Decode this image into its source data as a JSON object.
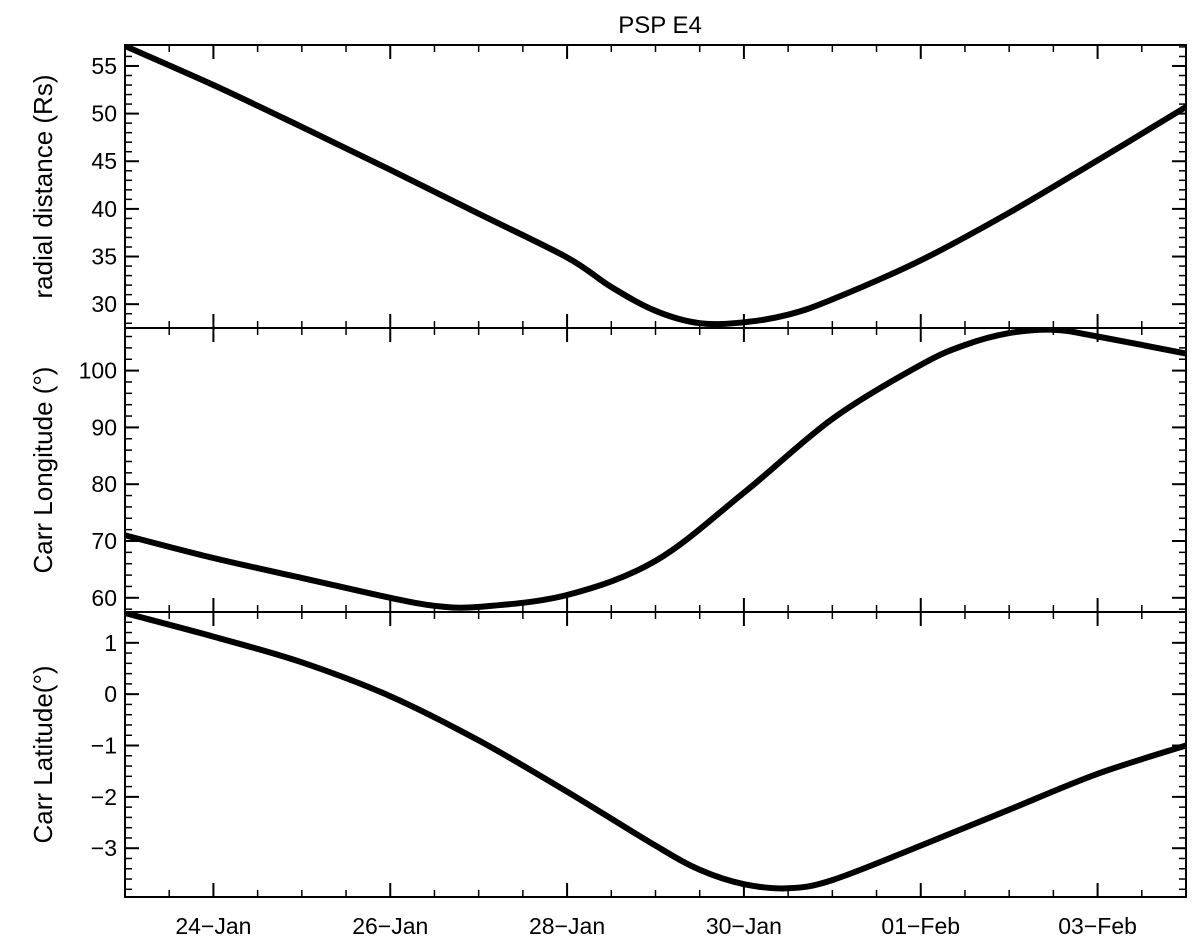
{
  "chart_data": {
    "type": "line",
    "title": "PSP E4",
    "x_unit": "days",
    "x_ticks": [
      {
        "value": "2020-01-24",
        "label": "24−Jan"
      },
      {
        "value": "2020-01-26",
        "label": "26−Jan"
      },
      {
        "value": "2020-01-28",
        "label": "28−Jan"
      },
      {
        "value": "2020-01-30",
        "label": "30−Jan"
      },
      {
        "value": "2020-02-01",
        "label": "01−Feb"
      },
      {
        "value": "2020-02-03",
        "label": "03−Feb"
      }
    ],
    "xlim": [
      "2020-01-23",
      "2020-02-04"
    ],
    "line_color": "#000000",
    "panels": [
      {
        "ylabel": "radial distance (Rs)",
        "ylim": [
          27.5,
          57.2
        ],
        "yticks": [
          30,
          35,
          40,
          45,
          50,
          55
        ],
        "series": {
          "x": [
            "2020-01-23",
            "2020-01-24",
            "2020-01-25",
            "2020-01-26",
            "2020-01-27",
            "2020-01-28",
            "2020-01-28T12:00",
            "2020-01-29",
            "2020-01-29T12:00",
            "2020-01-30",
            "2020-01-30T12:00",
            "2020-01-31",
            "2020-02-01",
            "2020-02-02",
            "2020-02-03",
            "2020-02-04"
          ],
          "y": [
            57.1,
            53.0,
            48.6,
            44.1,
            39.5,
            34.9,
            31.8,
            29.3,
            28.0,
            28.1,
            28.9,
            30.5,
            34.6,
            39.6,
            45.1,
            50.7
          ]
        }
      },
      {
        "ylabel": "Carr Longitude (°)",
        "ylim": [
          57.5,
          107.5
        ],
        "yticks": [
          60,
          70,
          80,
          90,
          100
        ],
        "series": {
          "x": [
            "2020-01-23",
            "2020-01-24",
            "2020-01-25",
            "2020-01-26",
            "2020-01-26T12:00",
            "2020-01-27",
            "2020-01-28",
            "2020-01-29",
            "2020-01-30",
            "2020-01-31",
            "2020-02-01",
            "2020-02-01T12:00",
            "2020-02-02",
            "2020-02-02T12:00",
            "2020-02-03",
            "2020-02-04"
          ],
          "y": [
            71.0,
            67.0,
            63.5,
            60.0,
            58.6,
            58.4,
            60.5,
            66.5,
            78.5,
            91.5,
            101.0,
            104.5,
            106.6,
            107.2,
            106.0,
            103.0
          ]
        }
      },
      {
        "ylabel": "Carr Latitude(°)",
        "ylim": [
          -3.95,
          1.6
        ],
        "yticks": [
          -3,
          -2,
          -1,
          0,
          1
        ],
        "series": {
          "x": [
            "2020-01-23",
            "2020-01-24",
            "2020-01-25",
            "2020-01-26",
            "2020-01-27",
            "2020-01-28",
            "2020-01-29",
            "2020-01-29T12:00",
            "2020-01-30",
            "2020-01-30T12:00",
            "2020-01-31",
            "2020-02-01",
            "2020-02-02",
            "2020-02-03",
            "2020-02-04"
          ],
          "y": [
            1.58,
            1.12,
            0.62,
            -0.04,
            -0.9,
            -1.9,
            -2.95,
            -3.42,
            -3.7,
            -3.78,
            -3.62,
            -2.95,
            -2.25,
            -1.55,
            -1.0
          ]
        }
      }
    ]
  }
}
